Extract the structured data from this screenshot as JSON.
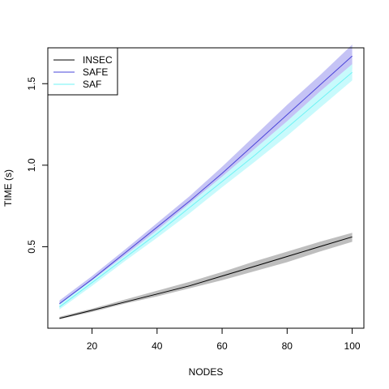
{
  "chart_data": {
    "type": "line",
    "xlabel": "NODES",
    "ylabel": "TIME (s)",
    "xlim": [
      6.4,
      103.6
    ],
    "ylim": [
      0.0,
      1.72
    ],
    "x_ticks": [
      20,
      40,
      60,
      80,
      100
    ],
    "x_tick_labels": [
      "20",
      "40",
      "60",
      "80",
      "100"
    ],
    "y_ticks": [
      0.5,
      1.0,
      1.5
    ],
    "y_tick_labels": [
      "0.5",
      "1.0",
      "1.5"
    ],
    "grid": false,
    "legend_position": "top-left",
    "x": [
      10,
      20,
      30,
      40,
      50,
      60,
      70,
      80,
      90,
      100
    ],
    "series": [
      {
        "name": "INSEC",
        "color": "#000000",
        "band_color": "#bebebe",
        "values": [
          0.06,
          0.11,
          0.16,
          0.21,
          0.26,
          0.32,
          0.38,
          0.44,
          0.5,
          0.56
        ],
        "upper": [
          0.07,
          0.12,
          0.175,
          0.23,
          0.285,
          0.345,
          0.41,
          0.47,
          0.53,
          0.585
        ],
        "lower": [
          0.055,
          0.1,
          0.15,
          0.195,
          0.245,
          0.295,
          0.35,
          0.405,
          0.47,
          0.53
        ]
      },
      {
        "name": "SAFE",
        "color": "#4a44d8",
        "band_color": "#c5c3f5",
        "values": [
          0.15,
          0.3,
          0.46,
          0.62,
          0.78,
          0.95,
          1.13,
          1.31,
          1.49,
          1.67
        ],
        "upper": [
          0.17,
          0.32,
          0.48,
          0.645,
          0.81,
          0.99,
          1.18,
          1.37,
          1.55,
          1.74
        ],
        "lower": [
          0.13,
          0.27,
          0.43,
          0.585,
          0.745,
          0.905,
          1.07,
          1.24,
          1.42,
          1.59
        ]
      },
      {
        "name": "SAF",
        "color": "#6ff3f5",
        "band_color": "#c8fafc",
        "values": [
          0.13,
          0.28,
          0.43,
          0.58,
          0.74,
          0.9,
          1.06,
          1.23,
          1.4,
          1.57
        ],
        "upper": [
          0.15,
          0.295,
          0.445,
          0.6,
          0.765,
          0.93,
          1.1,
          1.27,
          1.45,
          1.62
        ],
        "lower": [
          0.115,
          0.26,
          0.41,
          0.555,
          0.705,
          0.865,
          1.02,
          1.18,
          1.35,
          1.52
        ]
      }
    ]
  }
}
